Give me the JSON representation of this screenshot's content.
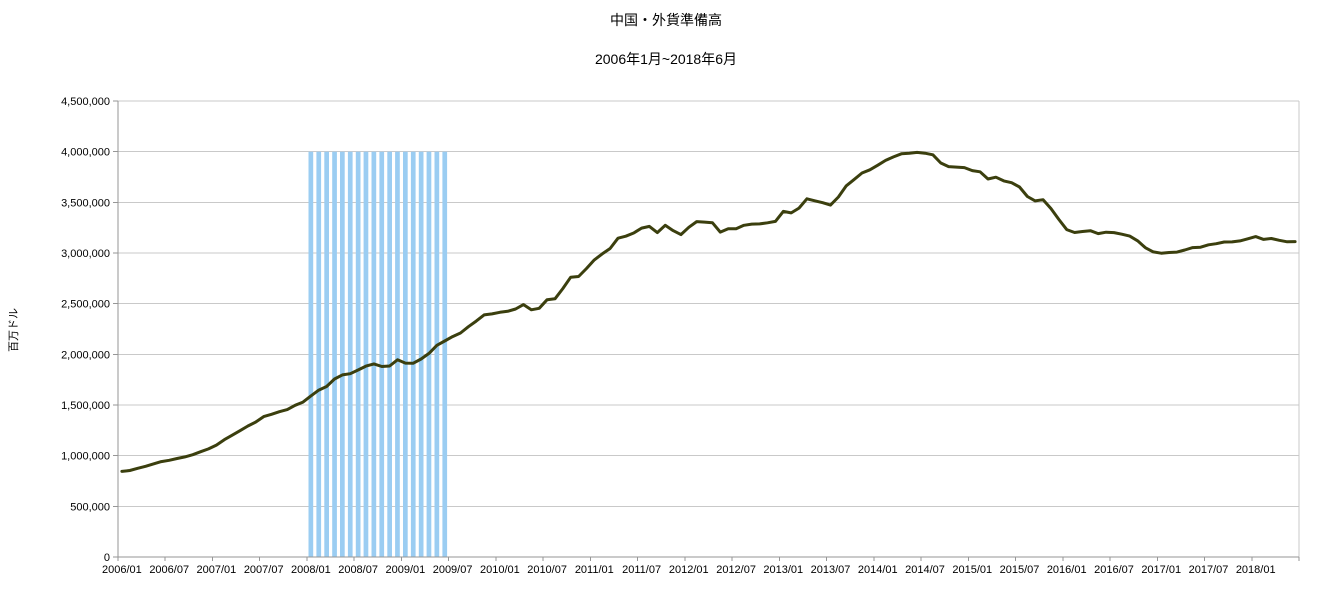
{
  "title": "中国・外貨準備高",
  "subtitle": "2006年1月~2018年6月",
  "chart_data": {
    "type": "line",
    "title": "中国・外貨準備高",
    "subtitle": "2006年1月~2018年6月",
    "xlabel": "",
    "ylabel": "百万ドル",
    "ylim": [
      0,
      4500000
    ],
    "ytick_interval": 500000,
    "grid": true,
    "legend": false,
    "x_start": "2006/01",
    "x_end": "2018/06",
    "months": 150,
    "xtick_labels": [
      "2006/01",
      "2006/07",
      "2007/01",
      "2007/07",
      "2008/01",
      "2008/07",
      "2009/01",
      "2009/07",
      "2010/01",
      "2010/07",
      "2011/01",
      "2011/07",
      "2012/01",
      "2012/07",
      "2013/01",
      "2013/07",
      "2014/01",
      "2014/07",
      "2015/01",
      "2015/07",
      "2016/01",
      "2016/07",
      "2017/01",
      "2017/07",
      "2018/01"
    ],
    "ytick_labels": [
      "0",
      "500,000",
      "1,000,000",
      "1,500,000",
      "2,000,000",
      "2,500,000",
      "3,000,000",
      "3,500,000",
      "4,000,000",
      "4,500,000"
    ],
    "series": [
      {
        "name": "外貨準備高",
        "color": "#3B3F0E",
        "values": [
          845180,
          853670,
          875070,
          895040,
          919000,
          941115,
          954550,
          972030,
          987900,
          1009630,
          1038800,
          1066340,
          1104700,
          1157400,
          1202030,
          1246600,
          1292700,
          1332630,
          1385200,
          1408600,
          1433600,
          1454900,
          1497000,
          1528250,
          1589810,
          1647100,
          1682180,
          1756700,
          1797000,
          1808830,
          1845200,
          1884200,
          1905590,
          1879700,
          1884700,
          1946030,
          1913500,
          1912100,
          1953740,
          2008900,
          2089500,
          2131610,
          2174600,
          2210800,
          2272600,
          2328300,
          2388800,
          2399150,
          2415200,
          2424600,
          2447080,
          2490500,
          2439500,
          2454280,
          2538900,
          2547800,
          2648300,
          2760900,
          2767800,
          2847340,
          2931700,
          2991400,
          3044670,
          3146500,
          3166000,
          3197490,
          3245300,
          3262500,
          3201700,
          3273800,
          3220900,
          3181150,
          3253600,
          3309700,
          3305000,
          3298900,
          3206100,
          3240010,
          3240000,
          3272900,
          3285100,
          3287400,
          3297700,
          3311590,
          3410100,
          3395400,
          3442650,
          3534500,
          3514800,
          3496670,
          3473000,
          3553000,
          3662700,
          3726800,
          3789000,
          3821315,
          3866600,
          3913700,
          3948100,
          3978800,
          3983900,
          3993212,
          3985000,
          3968800,
          3887700,
          3852900,
          3847400,
          3843018,
          3813400,
          3801500,
          3730040,
          3748100,
          3711100,
          3693840,
          3651300,
          3557380,
          3514120,
          3525510,
          3438280,
          3330362,
          3230890,
          3202320,
          3212580,
          3219700,
          3191740,
          3205162,
          3201060,
          3185170,
          3166380,
          3120660,
          3051600,
          3010517,
          2998200,
          3005120,
          3009090,
          3029530,
          3053570,
          3056790,
          3080720,
          3091530,
          3108500,
          3109210,
          3119280,
          3139949,
          3161460,
          3134480,
          3142820,
          3124850,
          3110620,
          3112130
        ]
      }
    ],
    "recession_band": {
      "start": "2008/01",
      "end": "2009/06",
      "start_index": 24,
      "end_index": 41,
      "top_value": 4000000,
      "color": "#9BCDF2",
      "style": "monthly-stripes"
    }
  },
  "colors": {
    "background": "#FFFFFF",
    "line": "#3B3F0E",
    "band": "#9BCDF2",
    "gridline": "#C9C9C9",
    "axis": "#969696",
    "text": "#000000"
  }
}
